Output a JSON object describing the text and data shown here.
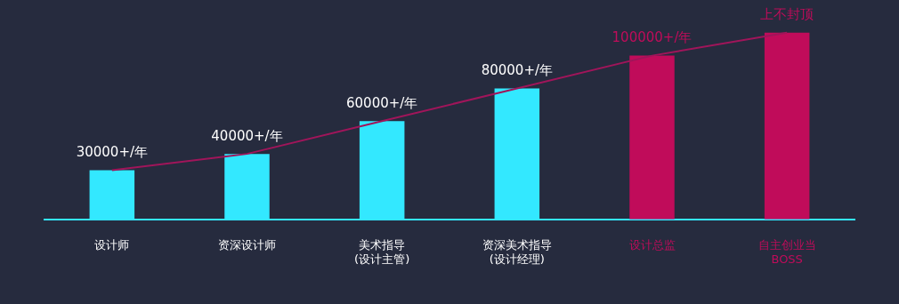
{
  "chart_data": {
    "type": "bar",
    "categories": [
      "设计师",
      "资深设计师",
      "美术指导\n(设计主管)",
      "资深美术指导\n(设计经理)",
      "设计总监",
      "自主创业当\nBOSS"
    ],
    "series": [
      {
        "values": [
          30000,
          40000,
          60000,
          80000,
          100000,
          114000
        ],
        "colors": [
          "#33e8ff",
          "#33e8ff",
          "#33e8ff",
          "#33e8ff",
          "#c00c5a",
          "#c00c5a"
        ],
        "value_labels": [
          "30000+/年",
          "40000+/年",
          "60000+/年",
          "80000+/年",
          "100000+/年",
          "上不封顶"
        ]
      },
      {
        "type": "line",
        "values": [
          30000,
          40000,
          60000,
          80000,
          100000,
          114000
        ],
        "color": "#a0155a"
      }
    ],
    "ylim": [
      0,
      134000
    ],
    "tick_labels": "x",
    "grid": false,
    "legend": false
  }
}
